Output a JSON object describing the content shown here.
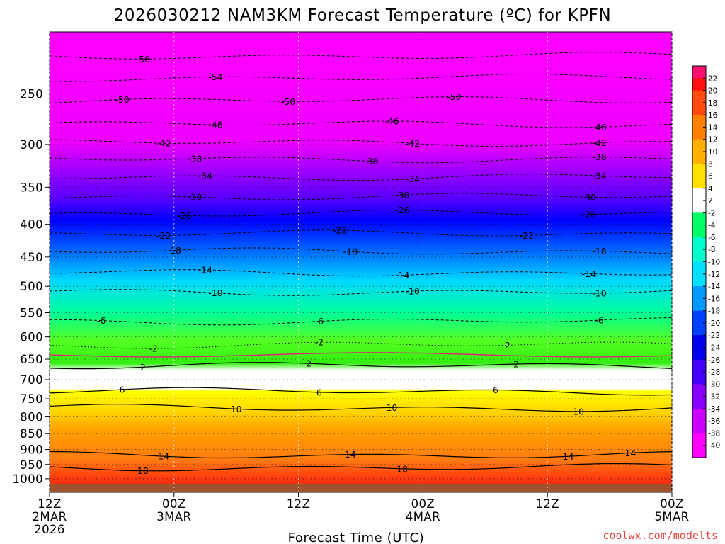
{
  "chart_data": {
    "type": "heatmap",
    "title": "2026030212 NAM3KM Forecast Temperature (ºC) for KPFN",
    "xlabel": "Forecast Time (UTC)",
    "ylabel": "",
    "credit": "coolwx.com/modelts",
    "x_ticks": [
      {
        "h": 0,
        "l1": "12Z",
        "l2": "2MAR",
        "l3": "2026"
      },
      {
        "h": 12,
        "l1": "00Z",
        "l2": "3MAR",
        "l3": ""
      },
      {
        "h": 24,
        "l1": "12Z",
        "l2": "",
        "l3": ""
      },
      {
        "h": 36,
        "l1": "00Z",
        "l2": "4MAR",
        "l3": ""
      },
      {
        "h": 48,
        "l1": "12Z",
        "l2": "",
        "l3": ""
      },
      {
        "h": 60,
        "l1": "00Z",
        "l2": "5MAR",
        "l3": ""
      }
    ],
    "y_ticks": [
      250,
      300,
      350,
      400,
      450,
      500,
      550,
      600,
      650,
      700,
      750,
      800,
      850,
      900,
      950,
      1000
    ],
    "colorbar_levels": [
      22,
      20,
      18,
      16,
      14,
      12,
      10,
      8,
      6,
      4,
      2,
      -2,
      -4,
      -6,
      -8,
      -10,
      -12,
      -14,
      -16,
      -18,
      -20,
      -22,
      -24,
      -26,
      -28,
      -30,
      -32,
      -34,
      -36,
      -38,
      -40
    ],
    "contours": [
      {
        "temp": -58,
        "p": 218,
        "style": "dashed",
        "labels": [
          {
            "h": 9
          }
        ]
      },
      {
        "temp": -54,
        "p": 236,
        "style": "dashed",
        "labels": [
          {
            "h": 16
          }
        ]
      },
      {
        "temp": -50,
        "p": 256,
        "style": "dashed",
        "labels": [
          {
            "h": 7
          },
          {
            "h": 23
          },
          {
            "h": 39
          }
        ]
      },
      {
        "temp": -46,
        "p": 279,
        "style": "dashed",
        "labels": [
          {
            "h": 16
          },
          {
            "h": 33
          },
          {
            "h": 53
          }
        ]
      },
      {
        "temp": -42,
        "p": 298,
        "style": "dashed",
        "labels": [
          {
            "h": 11
          },
          {
            "h": 35
          },
          {
            "h": 53
          }
        ]
      },
      {
        "temp": -38,
        "p": 316,
        "style": "dashed",
        "labels": [
          {
            "h": 14
          },
          {
            "h": 31
          },
          {
            "h": 53
          }
        ]
      },
      {
        "temp": -34,
        "p": 337,
        "style": "dashed",
        "labels": [
          {
            "h": 15
          },
          {
            "h": 35
          },
          {
            "h": 53
          }
        ]
      },
      {
        "temp": -30,
        "p": 362,
        "style": "dashed",
        "labels": [
          {
            "h": 14
          },
          {
            "h": 34
          },
          {
            "h": 52
          }
        ]
      },
      {
        "temp": -26,
        "p": 385,
        "style": "dashed",
        "labels": [
          {
            "h": 13
          },
          {
            "h": 34
          },
          {
            "h": 52
          }
        ]
      },
      {
        "temp": -22,
        "p": 414,
        "style": "dashed",
        "labels": [
          {
            "h": 11
          },
          {
            "h": 28
          },
          {
            "h": 46
          }
        ]
      },
      {
        "temp": -18,
        "p": 441,
        "style": "dashed",
        "labels": [
          {
            "h": 12
          },
          {
            "h": 29
          },
          {
            "h": 53
          }
        ]
      },
      {
        "temp": -14,
        "p": 476,
        "style": "dashed",
        "labels": [
          {
            "h": 15
          },
          {
            "h": 34
          },
          {
            "h": 52
          }
        ]
      },
      {
        "temp": -10,
        "p": 510,
        "style": "dashed",
        "labels": [
          {
            "h": 16
          },
          {
            "h": 35
          },
          {
            "h": 53
          }
        ]
      },
      {
        "temp": -6,
        "p": 567,
        "style": "dashed",
        "labels": [
          {
            "h": 5
          },
          {
            "h": 26
          },
          {
            "h": 53
          }
        ]
      },
      {
        "temp": -2,
        "p": 618,
        "style": "dotted",
        "labels": [
          {
            "h": 10
          },
          {
            "h": 26
          },
          {
            "h": 44
          }
        ]
      },
      {
        "temp": 2,
        "p": 666,
        "style": "solid",
        "labels": [
          {
            "h": 9
          },
          {
            "h": 25
          },
          {
            "h": 45
          }
        ]
      },
      {
        "temp": 6,
        "p": 730,
        "style": "solid",
        "labels": [
          {
            "h": 7
          },
          {
            "h": 26
          },
          {
            "h": 43
          }
        ]
      },
      {
        "temp": 10,
        "p": 775,
        "style": "solid",
        "labels": [
          {
            "h": 18
          },
          {
            "h": 33
          },
          {
            "h": 51
          }
        ]
      },
      {
        "temp": 14,
        "p": 918,
        "style": "solid",
        "labels": [
          {
            "h": 11
          },
          {
            "h": 29
          },
          {
            "h": 50
          },
          {
            "h": 56
          }
        ]
      },
      {
        "temp": 18,
        "p": 960,
        "style": "solid",
        "labels": [
          {
            "h": 9
          },
          {
            "h": 34
          }
        ]
      }
    ]
  }
}
